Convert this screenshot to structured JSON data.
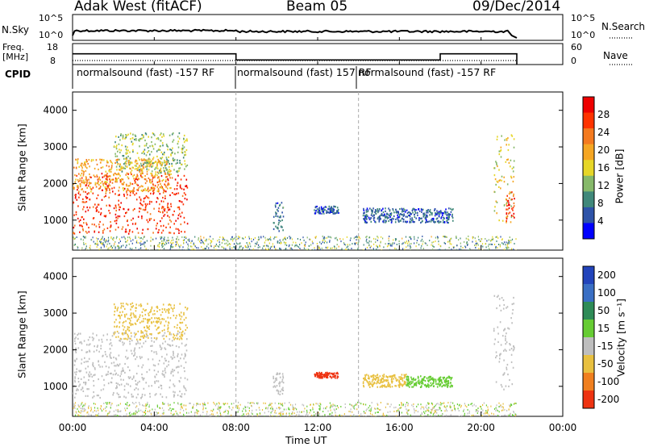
{
  "header": {
    "radar": "Adak West (fitACF)",
    "beam": "Beam 05",
    "date": "09/Dec/2014"
  },
  "nsky_panel": {
    "left_label": "N.Sky",
    "left_ticks": [
      "10^5",
      "10^0"
    ],
    "right_ticks": [
      "10^5",
      "10^0"
    ],
    "right_label": "N.Search",
    "right_label_style": "dotted"
  },
  "freq_panel": {
    "left_label_line1": "Freq.",
    "left_label_line2": "[MHz]",
    "left_ticks": [
      "18",
      "8"
    ],
    "right_ticks": [
      "60",
      "0"
    ],
    "right_label": "Nave",
    "right_label_style": "dotted",
    "freq_series_mhz": [
      {
        "from": 0.0,
        "to": 8.0,
        "value": 13.1
      },
      {
        "from": 8.0,
        "to": 18.0,
        "value": 10.2
      },
      {
        "from": 18.0,
        "to": 21.75,
        "value": 13.1
      }
    ]
  },
  "cpid": {
    "label": "CPID",
    "modes": [
      {
        "start": 0.0,
        "text": "normalsound (fast) -157 RF"
      },
      {
        "start": 8.0,
        "text": "normalsound (fast) 157 RF"
      },
      {
        "start": 14.0,
        "text": "normalsound (fast) -157 RF"
      }
    ]
  },
  "time_axis": {
    "label": "Time UT",
    "ticks": [
      "00:00",
      "04:00",
      "08:00",
      "12:00",
      "16:00",
      "20:00",
      "00:00"
    ],
    "range_hours": [
      0,
      24
    ]
  },
  "chart_data": [
    {
      "type": "heatmap",
      "title": "",
      "ylabel": "Slant Range [km]",
      "xlabel": "Time UT",
      "ylim": [
        180,
        4500
      ],
      "yticks": [
        "1000",
        "2000",
        "3000",
        "4000"
      ],
      "colorbar_label": "Power [dB]",
      "colorbar_ticks": [
        "4",
        "8",
        "12",
        "16",
        "20",
        "24",
        "28"
      ],
      "colorbar_range": [
        0,
        32
      ],
      "colors": [
        "#0000ff",
        "#2e53a8",
        "#40887a",
        "#86b96a",
        "#e6d628",
        "#f5a623",
        "#f47a1f",
        "#ff3300",
        "#ee0000"
      ],
      "regions": [
        {
          "t_start": 0.0,
          "t_end": 5.6,
          "r_min": 650,
          "r_max": 2300,
          "value": 27
        },
        {
          "t_start": 0.0,
          "t_end": 4.8,
          "r_min": 1800,
          "r_max": 2700,
          "value": 20
        },
        {
          "t_start": 2.0,
          "t_end": 5.6,
          "r_min": 2300,
          "r_max": 3400,
          "value": 13
        },
        {
          "t_start": 9.8,
          "t_end": 10.3,
          "r_min": 700,
          "r_max": 1500,
          "value": 7
        },
        {
          "t_start": 11.8,
          "t_end": 13.0,
          "r_min": 1200,
          "r_max": 1400,
          "value": 6
        },
        {
          "t_start": 14.2,
          "t_end": 18.6,
          "r_min": 950,
          "r_max": 1350,
          "value": 6
        },
        {
          "t_start": 20.6,
          "t_end": 21.6,
          "r_min": 900,
          "r_max": 3500,
          "value": 16
        },
        {
          "t_start": 21.2,
          "t_end": 21.6,
          "r_min": 1000,
          "r_max": 1800,
          "value": 27
        }
      ]
    },
    {
      "type": "heatmap",
      "title": "",
      "ylabel": "Slant Range [km]",
      "xlabel": "Time UT",
      "ylim": [
        180,
        4500
      ],
      "yticks": [
        "1000",
        "2000",
        "3000",
        "4000"
      ],
      "colorbar_label": "Velocity [m s⁻¹]",
      "colorbar_ticks": [
        "200",
        "100",
        "50",
        "15",
        "-15",
        "-50",
        "-100",
        "-200"
      ],
      "colors": [
        "#2244bb",
        "#3a6fc4",
        "#2e8b57",
        "#66cc33",
        "#bebebe",
        "#e8c040",
        "#f07f1f",
        "#ee3311"
      ],
      "regions": [
        {
          "t_start": 0.0,
          "t_end": 5.6,
          "r_min": 700,
          "r_max": 2500,
          "value": 0
        },
        {
          "t_start": 2.0,
          "t_end": 5.6,
          "r_min": 2300,
          "r_max": 3300,
          "value": -30
        },
        {
          "t_start": 9.8,
          "t_end": 10.3,
          "r_min": 800,
          "r_max": 1400,
          "value": 0
        },
        {
          "t_start": 11.8,
          "t_end": 13.0,
          "r_min": 1250,
          "r_max": 1400,
          "value": -220
        },
        {
          "t_start": 14.2,
          "t_end": 16.3,
          "r_min": 1000,
          "r_max": 1350,
          "value": -40
        },
        {
          "t_start": 16.3,
          "t_end": 18.6,
          "r_min": 1000,
          "r_max": 1300,
          "value": 40
        },
        {
          "t_start": 20.6,
          "t_end": 21.6,
          "r_min": 900,
          "r_max": 3500,
          "value": 0
        }
      ]
    }
  ]
}
